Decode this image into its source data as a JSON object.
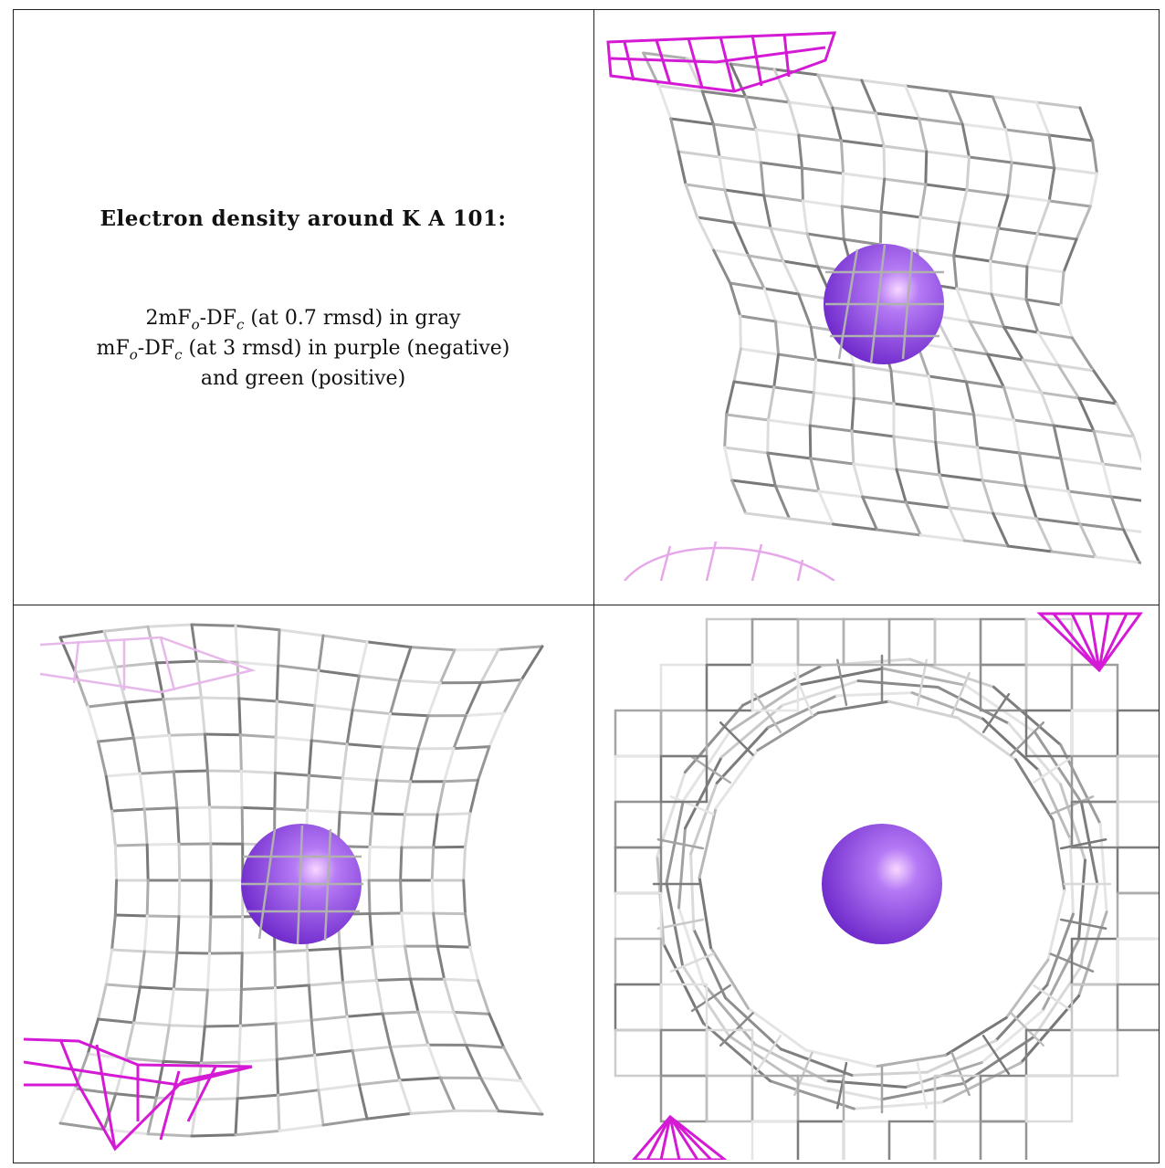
{
  "legend": {
    "title": "Electron density around K A 101:",
    "gray_map": "2mF",
    "gray_map_sub_o": "o",
    "gray_map_mid": "-DF",
    "gray_map_sub_c": "c",
    "gray_map_desc": " (at 0.7 rmsd) in gray",
    "diff_map": "mF",
    "diff_map_sub_o": "o",
    "diff_map_mid": "-DF",
    "diff_map_sub_c": "c",
    "diff_map_desc": " (at 3 rmsd) in purple (negative)",
    "diff_map_line2": "and green (positive)"
  },
  "colors": {
    "gray_mesh": "#9a9a9a",
    "gray_mesh_light": "#d4d4d4",
    "negative_mesh": "#d41ad4",
    "potassium_atom": "#8a3fe0"
  },
  "panels": [
    {
      "name": "view-top-right",
      "atom": "potassium-atom"
    },
    {
      "name": "view-bottom-left",
      "atom": "potassium-atom"
    },
    {
      "name": "view-bottom-right",
      "atom": "potassium-atom"
    }
  ]
}
